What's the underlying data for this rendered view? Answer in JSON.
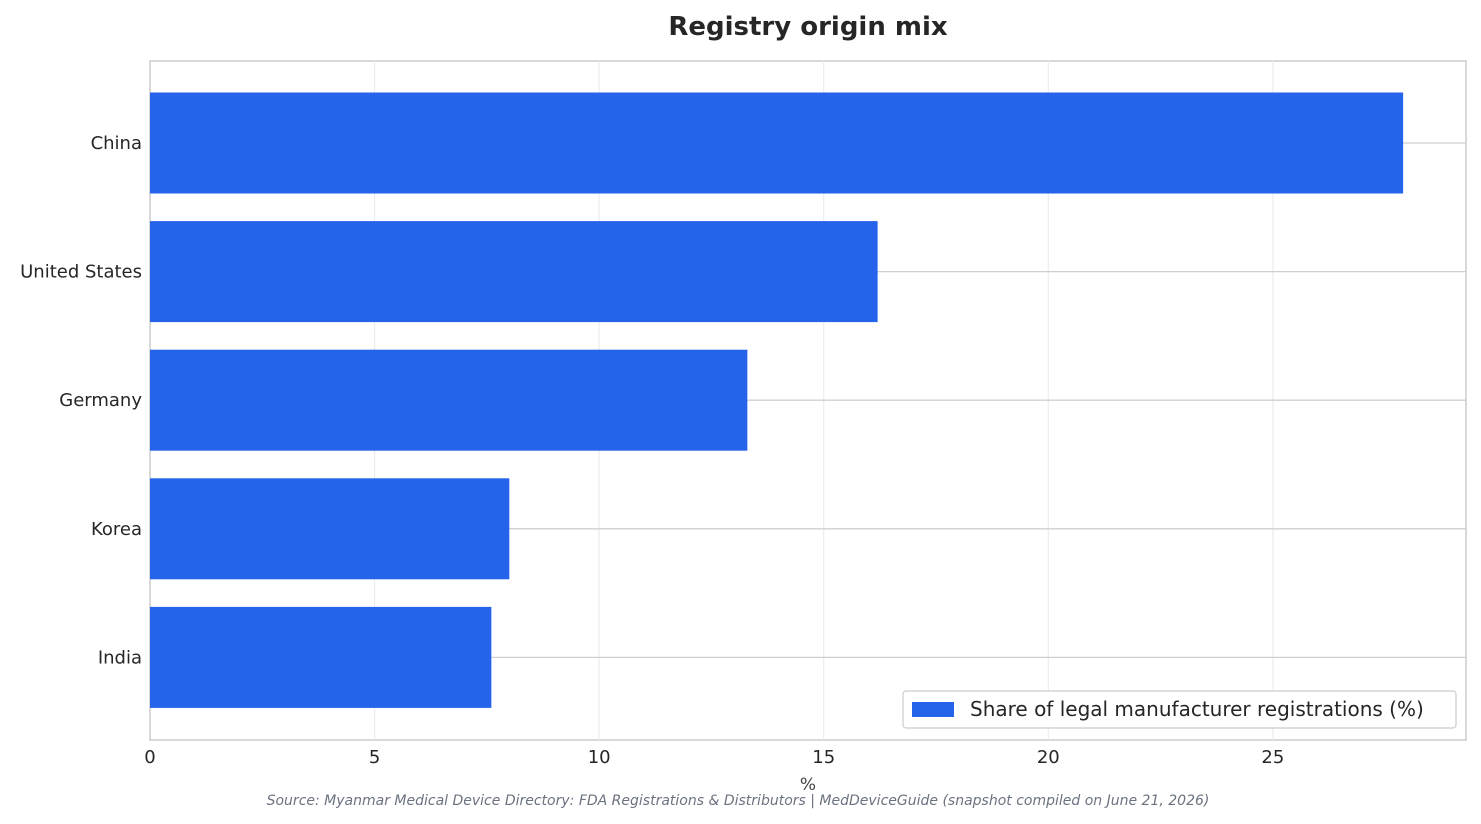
{
  "chart_data": {
    "type": "bar",
    "orientation": "horizontal",
    "title": "Registry origin mix",
    "xlabel": "%",
    "ylabel": "",
    "categories": [
      "China",
      "United States",
      "Germany",
      "Korea",
      "India"
    ],
    "series": [
      {
        "name": "Share of legal manufacturer registrations (%)",
        "values": [
          27.9,
          16.2,
          13.3,
          8.0,
          7.6
        ],
        "color": "#2563eb"
      }
    ],
    "xlim": [
      0,
      29.3
    ],
    "xticks": [
      "0",
      "5",
      "10",
      "15",
      "20",
      "25"
    ],
    "grid": true,
    "legend_position": "bottom-right",
    "source": "Source: Myanmar Medical Device Directory: FDA Registrations & Distributors | MedDeviceGuide (snapshot compiled on June 21, 2026)"
  }
}
